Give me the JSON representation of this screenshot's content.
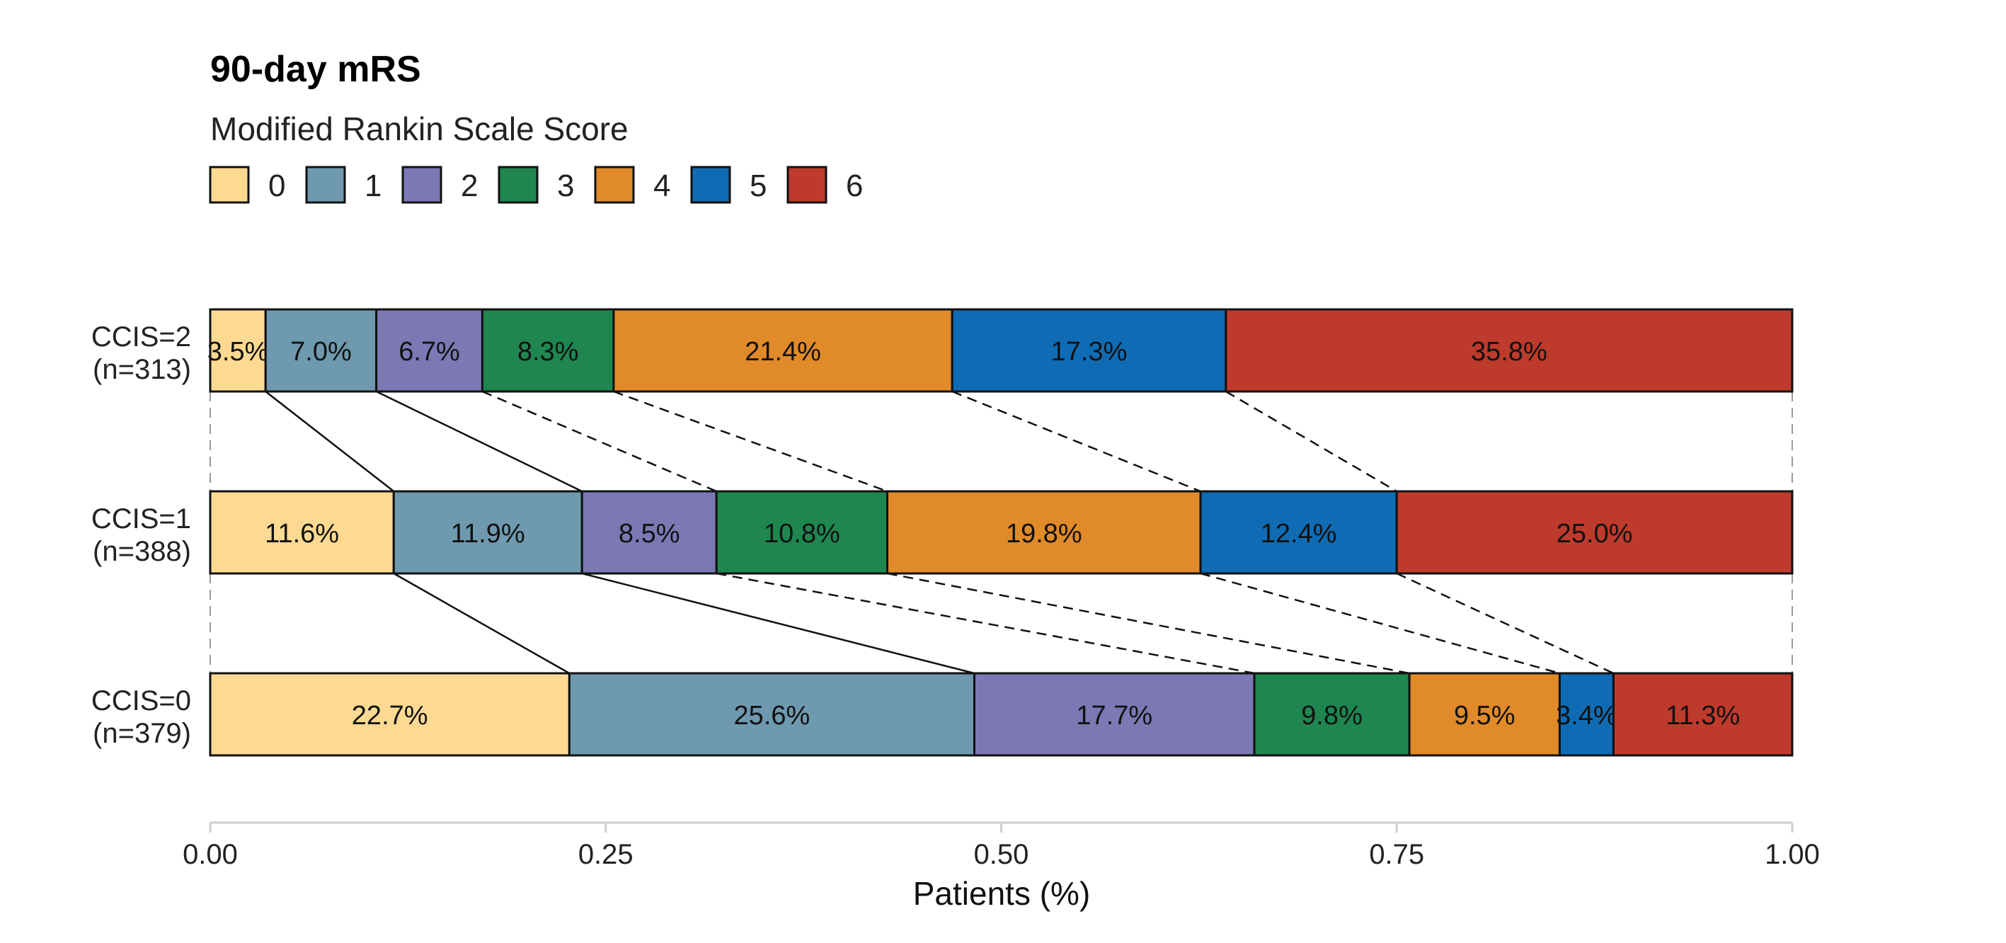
{
  "chart_data": {
    "type": "bar",
    "orientation": "horizontal",
    "stacked": true,
    "title": "90-day mRS",
    "legend_title": "Modified Rankin Scale Score",
    "legend_position": "top-left",
    "xlabel": "Patients (%)",
    "xlim": [
      0,
      1
    ],
    "x_ticks": [
      "0.00",
      "0.25",
      "0.50",
      "0.75",
      "1.00"
    ],
    "grid": false,
    "categories": [
      "CCIS=2\n(n=313)",
      "CCIS=1\n(n=388)",
      "CCIS=0\n(n=379)"
    ],
    "series": [
      {
        "name": "0",
        "color": "#FDD992",
        "values": [
          0.035,
          0.116,
          0.227
        ],
        "labels": [
          "3.5%",
          "11.6%",
          "22.7%"
        ]
      },
      {
        "name": "1",
        "color": "#6E99AE",
        "values": [
          0.07,
          0.119,
          0.256
        ],
        "labels": [
          "7.0%",
          "11.9%",
          "25.6%"
        ]
      },
      {
        "name": "2",
        "color": "#7B78B4",
        "values": [
          0.067,
          0.085,
          0.177
        ],
        "labels": [
          "6.7%",
          "8.5%",
          "17.7%"
        ]
      },
      {
        "name": "3",
        "color": "#1F8650",
        "values": [
          0.083,
          0.108,
          0.098
        ],
        "labels": [
          "8.3%",
          "10.8%",
          "9.8%"
        ]
      },
      {
        "name": "4",
        "color": "#E08A2A",
        "values": [
          0.214,
          0.198,
          0.095
        ],
        "labels": [
          "21.4%",
          "19.8%",
          "9.5%"
        ]
      },
      {
        "name": "5",
        "color": "#0F6CB4",
        "values": [
          0.173,
          0.124,
          0.034
        ],
        "labels": [
          "17.3%",
          "12.4%",
          "3.4%"
        ]
      },
      {
        "name": "6",
        "color": "#BE3A2C",
        "values": [
          0.358,
          0.25,
          0.113
        ],
        "labels": [
          "35.8%",
          "25.0%",
          "11.3%"
        ]
      }
    ]
  }
}
